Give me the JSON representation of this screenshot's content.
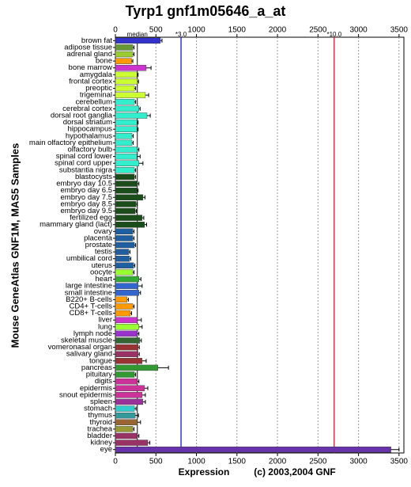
{
  "chart_data": {
    "type": "hbar",
    "title": "Tyrp1 gnf1m05646_a_at",
    "ylabel": "Mouse GeneAtlas GNF1M, MAS5 Samples",
    "xlabel": "Expression",
    "credit": "(c) 2003,2004 GNF",
    "categories": [
      "brown fat",
      "adipose tissue",
      "adrenal gland",
      "bone",
      "bone marrow",
      "amygdala",
      "frontal cortex",
      "preoptic",
      "trigeminal",
      "cerebellum",
      "cerebral cortex",
      "dorsal root ganglia",
      "dorsal striatum",
      "hippocampus",
      "hypothalamus",
      "main olfactory epithelium",
      "olfactory bulb",
      "spinal cord lower",
      "spinal cord upper",
      "substantia nigra",
      "blastocysts",
      "embryo day 10.5",
      "embryo day 6.5",
      "embryo day 7.5",
      "embryo day 8.5",
      "embryo day 9.5",
      "fertilized egg",
      "mammary gland (lact)",
      "ovary",
      "placenta",
      "prostate",
      "testis",
      "umbilical cord",
      "uterus",
      "oocyte",
      "heart",
      "large intestine",
      "small intestine",
      "B220+ B-cells",
      "CD4+ T-cells",
      "CD8+ T-cells",
      "liver",
      "lung",
      "lymph node",
      "skeletal muscle",
      "vomeronasal organ",
      "salivary gland",
      "tongue",
      "pancreas",
      "pituitary",
      "digits",
      "epidermis",
      "snout epidermis",
      "spleen",
      "stomach",
      "thymus",
      "thyroid",
      "trachea",
      "bladder",
      "kidney",
      "eye"
    ],
    "values": [
      555,
      215,
      215,
      200,
      380,
      265,
      270,
      235,
      370,
      235,
      290,
      390,
      265,
      265,
      205,
      205,
      270,
      265,
      290,
      235,
      235,
      270,
      265,
      340,
      255,
      245,
      330,
      360,
      215,
      215,
      235,
      165,
      175,
      225,
      215,
      290,
      280,
      290,
      145,
      215,
      185,
      270,
      290,
      270,
      300,
      280,
      280,
      330,
      525,
      235,
      270,
      360,
      330,
      340,
      235,
      245,
      270,
      215,
      270,
      400,
      3400
    ],
    "errors": [
      20,
      15,
      15,
      15,
      60,
      15,
      15,
      15,
      40,
      15,
      15,
      40,
      15,
      15,
      15,
      15,
      20,
      40,
      50,
      15,
      15,
      20,
      15,
      25,
      15,
      15,
      20,
      25,
      15,
      15,
      15,
      15,
      15,
      15,
      15,
      25,
      50,
      20,
      15,
      15,
      15,
      50,
      40,
      20,
      20,
      15,
      15,
      50,
      130,
      15,
      20,
      40,
      40,
      30,
      20,
      40,
      40,
      15,
      20,
      25,
      100
    ],
    "colors": [
      "#3333cc",
      "#669933",
      "#99cc33",
      "#ff9900",
      "#cc33cc",
      "#ccff33",
      "#ccff33",
      "#ccff33",
      "#ccff33",
      "#33eecc",
      "#33eecc",
      "#33eecc",
      "#33eecc",
      "#33eecc",
      "#33eecc",
      "#33eecc",
      "#33eecc",
      "#33eecc",
      "#33eecc",
      "#33eecc",
      "#1a4d1a",
      "#1a4d1a",
      "#1a4d1a",
      "#1a4d1a",
      "#1a4d1a",
      "#1a4d1a",
      "#1a4d1a",
      "#1a4d1a",
      "#1f5f9f",
      "#1f5f9f",
      "#1f5f9f",
      "#1f5f9f",
      "#1f5f9f",
      "#1f5f9f",
      "#99ff33",
      "#33aa33",
      "#3366cc",
      "#3366cc",
      "#ff9900",
      "#ff9900",
      "#ff9900",
      "#cc33cc",
      "#99ff33",
      "#9933cc",
      "#336633",
      "#993333",
      "#993366",
      "#993333",
      "#339933",
      "#339933",
      "#cc3399",
      "#cc3399",
      "#cc3399",
      "#993399",
      "#33cccc",
      "#339999",
      "#996633",
      "#999933",
      "#993366",
      "#993366",
      "#6633aa"
    ],
    "xlim": [
      0,
      3560
    ],
    "xticks": [
      0,
      500,
      1000,
      1500,
      2000,
      2500,
      3000,
      3500
    ],
    "grid": true,
    "reference_lines": [
      {
        "label": "median",
        "value": 270,
        "color": "#333333"
      },
      {
        "label": "*3.0",
        "value": 810,
        "color": "#0000cc"
      },
      {
        "label": "*10.0",
        "value": 2700,
        "color": "#dd0000"
      }
    ]
  }
}
